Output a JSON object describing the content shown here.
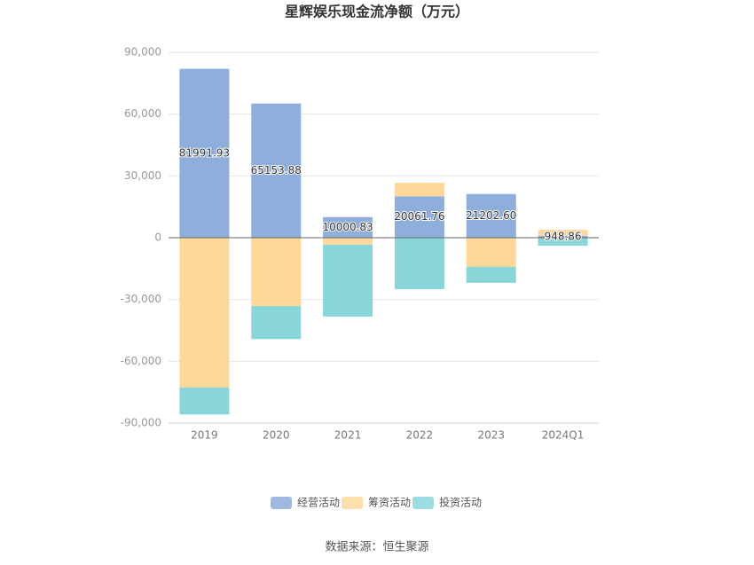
{
  "chart_data": {
    "type": "stacked-bar",
    "title": "星辉娱乐现金流净额（万元）",
    "categories": [
      "2019",
      "2020",
      "2021",
      "2022",
      "2023",
      "2024Q1"
    ],
    "series": [
      {
        "name": "经营活动",
        "color": "#8eaedb",
        "values": [
          81991.93,
          65153.88,
          10000.83,
          20061.76,
          21202.6,
          948.86
        ],
        "value_labels": [
          "81991.93",
          "65153.88",
          "10000.83",
          "20061.76",
          "21202.60",
          "948.86"
        ]
      },
      {
        "name": "筹资活动",
        "color": "#fed89b",
        "values": [
          -72800,
          -33200,
          -3400,
          6600,
          -14200,
          2900
        ]
      },
      {
        "name": "投资活动",
        "color": "#88d6d9",
        "values": [
          -13000,
          -16000,
          -34900,
          -25000,
          -7700,
          -3900
        ]
      }
    ],
    "ylim": [
      -90000,
      90000
    ],
    "yticks": [
      {
        "value": -90000,
        "label": "-90,000"
      },
      {
        "value": -60000,
        "label": "-60,000"
      },
      {
        "value": -30000,
        "label": "-30,000"
      },
      0,
      {
        "value": 30000,
        "label": "30,000"
      },
      {
        "value": 60000,
        "label": "60,000"
      },
      {
        "value": 90000,
        "label": "90,000"
      }
    ],
    "grid": true,
    "legend": "bottom",
    "source": "数据来源：恒生聚源"
  }
}
